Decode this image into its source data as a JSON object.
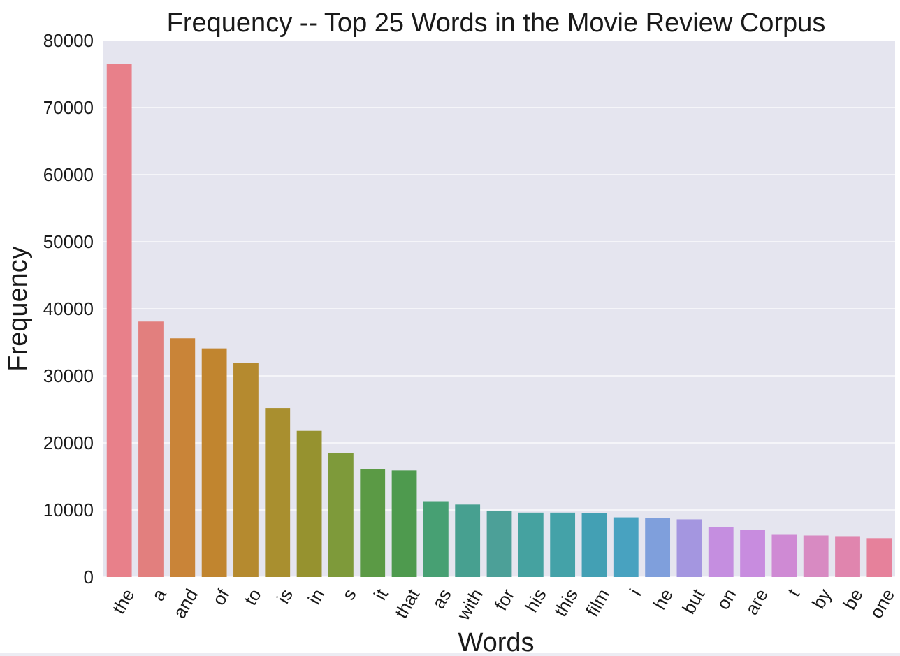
{
  "chart_data": {
    "type": "bar",
    "title": "Frequency -- Top 25 Words in the Movie Review Corpus",
    "xlabel": "Words",
    "ylabel": "Frequency",
    "ylim": [
      0,
      80000
    ],
    "yticks": [
      "0",
      "10000",
      "20000",
      "30000",
      "40000",
      "50000",
      "60000",
      "70000",
      "80000"
    ],
    "grid": true,
    "background_color": "#e5e5ef",
    "grid_color": "#ffffff",
    "categories": [
      "the",
      "a",
      "and",
      "of",
      "to",
      "is",
      "in",
      "s",
      "it",
      "that",
      "as",
      "with",
      "for",
      "his",
      "this",
      "film",
      "i",
      "he",
      "but",
      "on",
      "are",
      "t",
      "by",
      "be",
      "one"
    ],
    "values": [
      76500,
      38100,
      35600,
      34100,
      31900,
      25200,
      21800,
      18500,
      16100,
      15900,
      11300,
      10800,
      9900,
      9600,
      9600,
      9500,
      8900,
      8800,
      8600,
      7400,
      7000,
      6300,
      6200,
      6100,
      5800
    ],
    "colors": [
      "#e8808a",
      "#e27f7e",
      "#c98438",
      "#c1852f",
      "#b58a2f",
      "#a98f2f",
      "#96922f",
      "#7e9a3a",
      "#5b9a45",
      "#4e9a4e",
      "#47a073",
      "#47a090",
      "#4ca098",
      "#45a2a0",
      "#44a2a8",
      "#43a0b4",
      "#48a2c0",
      "#7f9fdc",
      "#a496e0",
      "#c58ee0",
      "#c88cdf",
      "#cf8ad4",
      "#d88ac2",
      "#e085ae",
      "#e6819b"
    ]
  }
}
